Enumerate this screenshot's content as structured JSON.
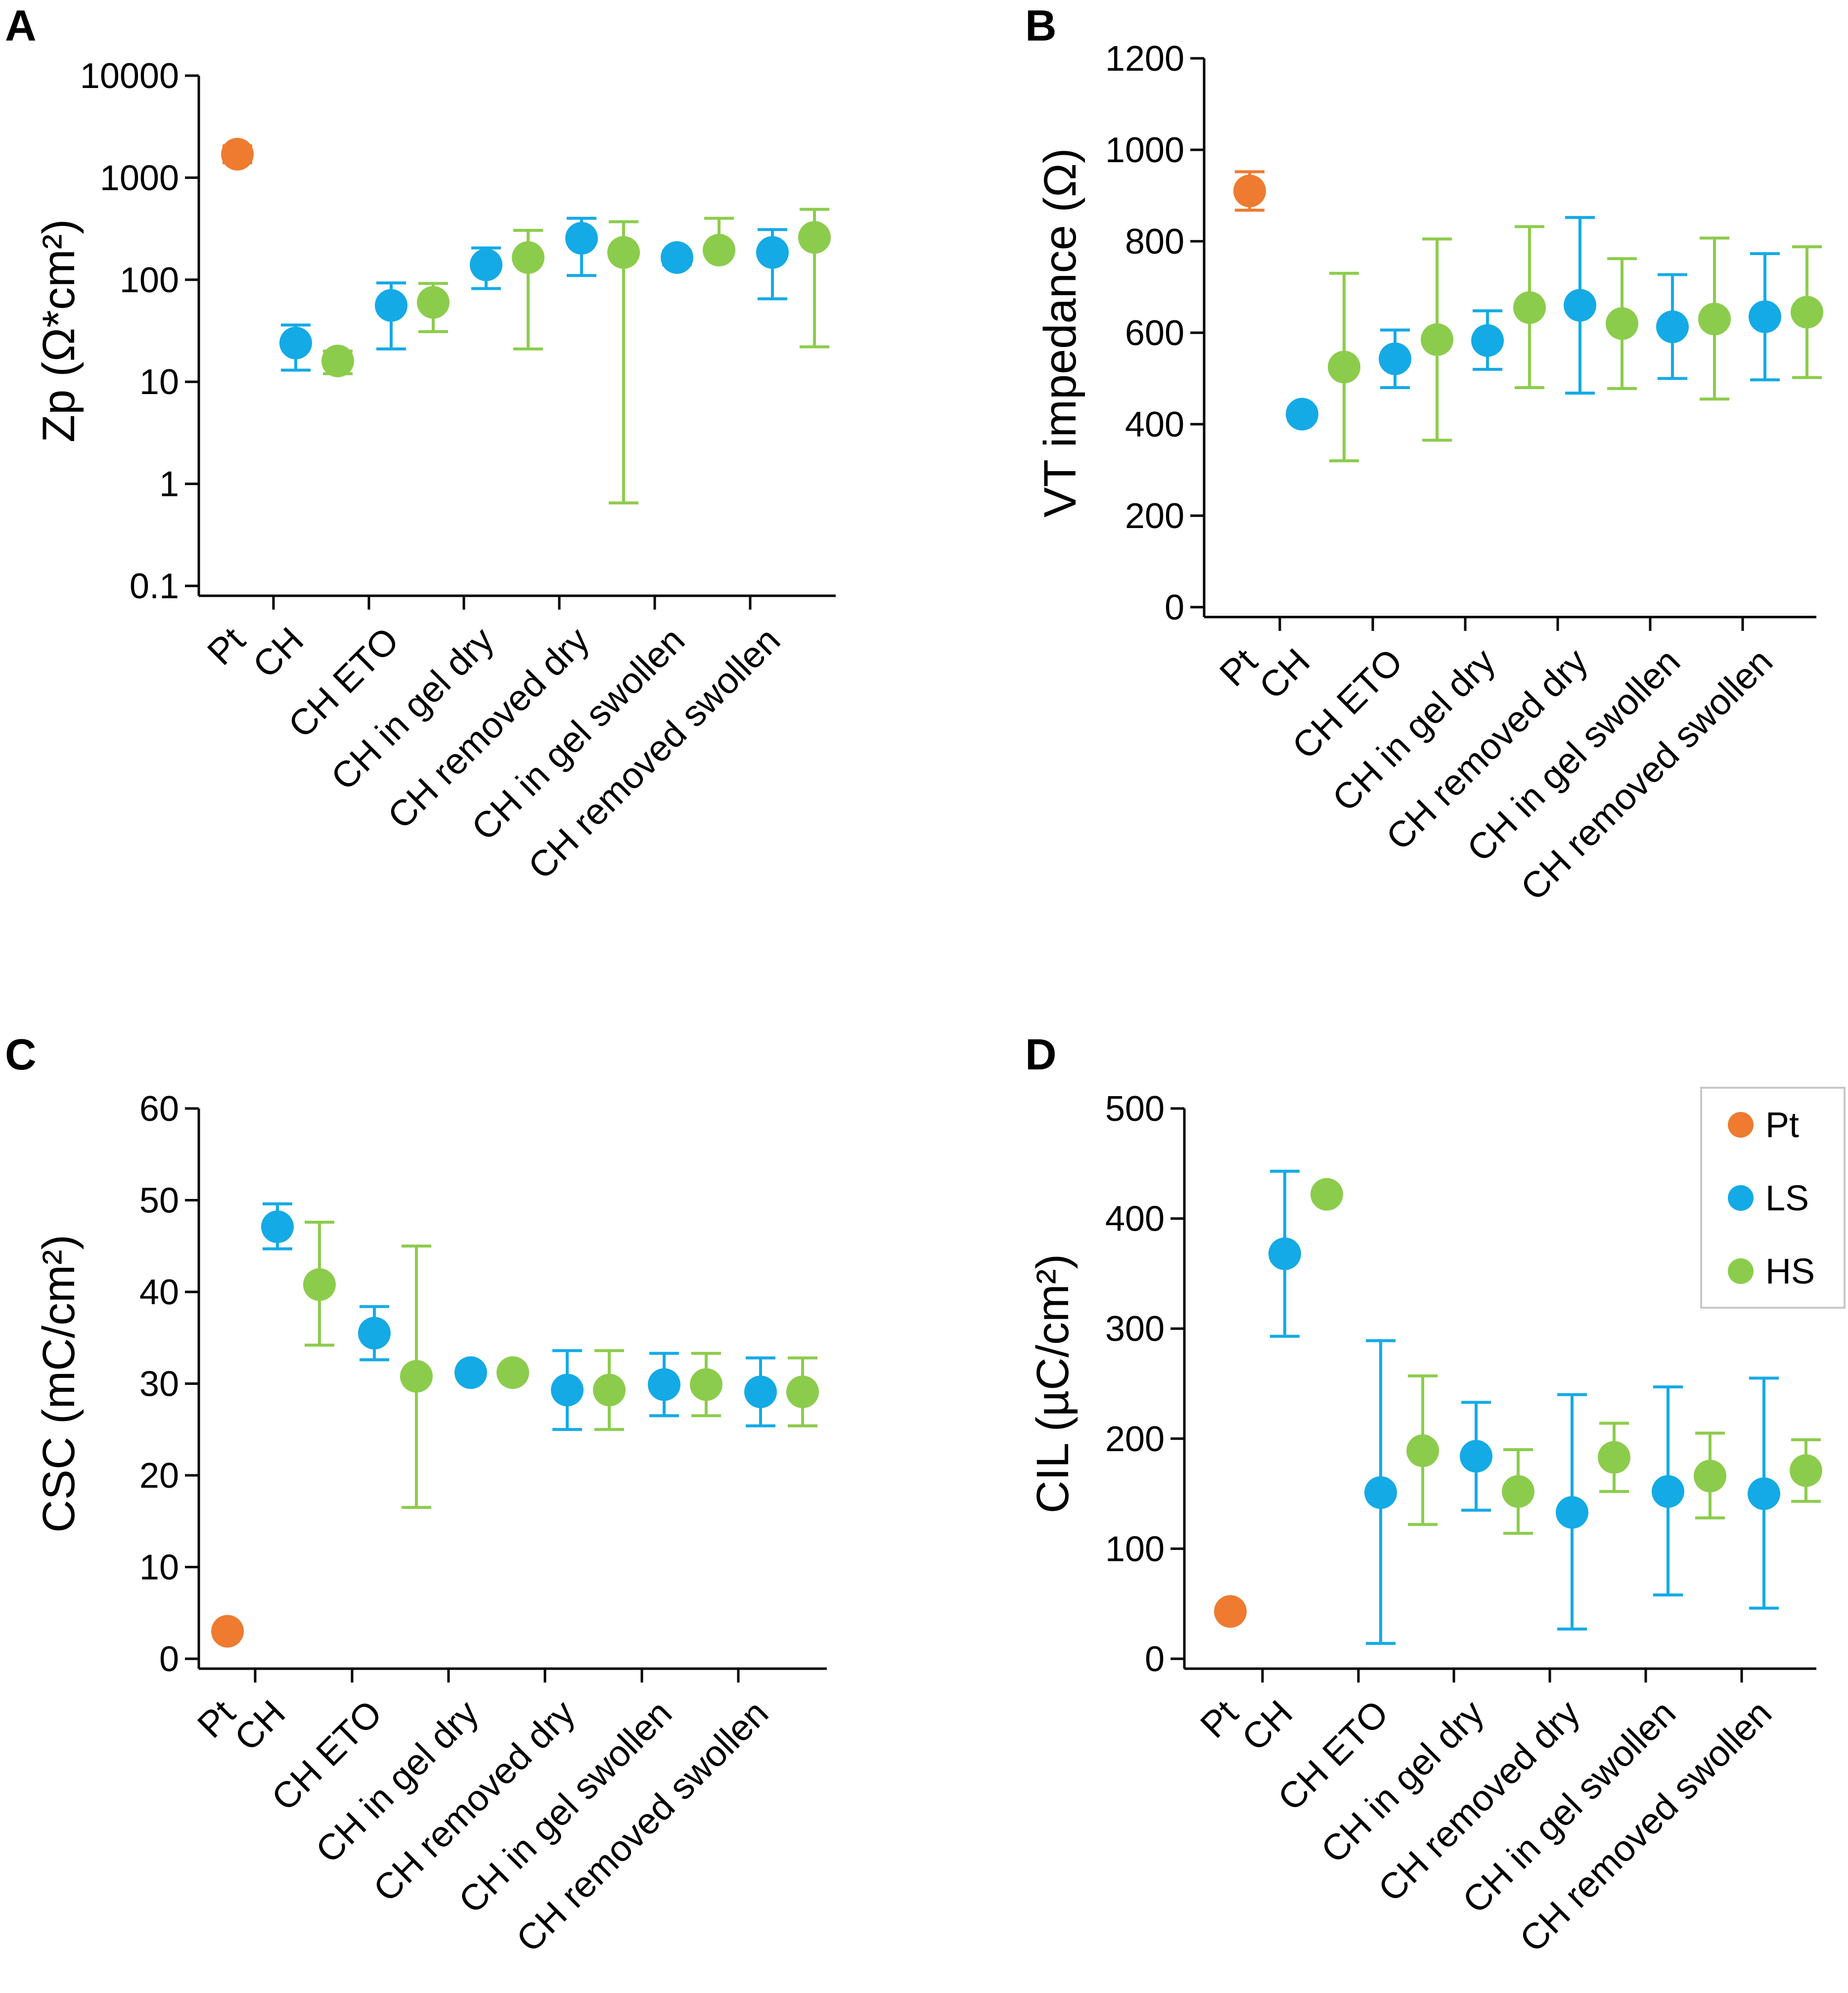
{
  "colors": {
    "Pt": "#ee7b30",
    "LS": "#14aae6",
    "HS": "#8ccc4c"
  },
  "legend": {
    "placement": "top-right of panel D",
    "entries": [
      {
        "series": "Pt",
        "label": "Pt"
      },
      {
        "series": "LS",
        "label": "LS"
      },
      {
        "series": "HS",
        "label": "HS"
      }
    ]
  },
  "chart_data": [
    {
      "panel": "A",
      "type": "scatter",
      "yscale": "log",
      "ylabel": "Zp (Ω*cm²)",
      "ylim": [
        0.1,
        10000
      ],
      "yticks": [
        "0.1",
        "1",
        "10",
        "100",
        "1000",
        "10000"
      ],
      "ytick_values": [
        0.1,
        1,
        10,
        100,
        1000,
        10000
      ],
      "categories": [
        "Pt",
        "CH",
        "CH ETO",
        "CH in gel dry",
        "CH removed dry",
        "CH in gel swollen",
        "CH removed swollen"
      ],
      "series": [
        {
          "name": "Pt",
          "points": [
            {
              "cat": 0,
              "y": 1700,
              "lo": 1400,
              "hi": 2050
            }
          ]
        },
        {
          "name": "LS",
          "points": [
            {
              "cat": 1,
              "y": 24,
              "lo": 13,
              "hi": 36
            },
            {
              "cat": 2,
              "y": 56,
              "lo": 21,
              "hi": 93
            },
            {
              "cat": 3,
              "y": 140,
              "lo": 82,
              "hi": 205
            },
            {
              "cat": 4,
              "y": 255,
              "lo": 110,
              "hi": 400
            },
            {
              "cat": 5,
              "y": 165,
              "lo": 140,
              "hi": 190
            },
            {
              "cat": 6,
              "y": 185,
              "lo": 65,
              "hi": 310
            }
          ]
        },
        {
          "name": "HS",
          "points": [
            {
              "cat": 1,
              "y": 16,
              "lo": 12,
              "hi": 20
            },
            {
              "cat": 2,
              "y": 60,
              "lo": 31,
              "hi": 92
            },
            {
              "cat": 3,
              "y": 165,
              "lo": 21,
              "hi": 305
            },
            {
              "cat": 4,
              "y": 185,
              "lo": 0.65,
              "hi": 370
            },
            {
              "cat": 5,
              "y": 195,
              "lo": 175,
              "hi": 400
            },
            {
              "cat": 6,
              "y": 260,
              "lo": 22,
              "hi": 490
            }
          ]
        }
      ]
    },
    {
      "panel": "B",
      "type": "scatter",
      "yscale": "linear",
      "ylabel": "VT impedance (Ω)",
      "ylim": [
        0,
        1200
      ],
      "yticks": [
        "0",
        "200",
        "400",
        "600",
        "800",
        "1000",
        "1200"
      ],
      "ytick_values": [
        0,
        200,
        400,
        600,
        800,
        1000,
        1200
      ],
      "categories": [
        "Pt",
        "CH",
        "CH ETO",
        "CH in gel dry",
        "CH removed dry",
        "CH in gel swollen",
        "CH removed swollen"
      ],
      "series": [
        {
          "name": "Pt",
          "points": [
            {
              "cat": 0,
              "y": 910,
              "lo": 868,
              "hi": 952
            }
          ]
        },
        {
          "name": "LS",
          "points": [
            {
              "cat": 1,
              "y": 422,
              "lo": 408,
              "hi": 436
            },
            {
              "cat": 2,
              "y": 543,
              "lo": 480,
              "hi": 606
            },
            {
              "cat": 3,
              "y": 583,
              "lo": 520,
              "hi": 648
            },
            {
              "cat": 4,
              "y": 660,
              "lo": 468,
              "hi": 852
            },
            {
              "cat": 5,
              "y": 613,
              "lo": 500,
              "hi": 727
            },
            {
              "cat": 6,
              "y": 635,
              "lo": 497,
              "hi": 773
            }
          ]
        },
        {
          "name": "HS",
          "points": [
            {
              "cat": 1,
              "y": 525,
              "lo": 320,
              "hi": 730
            },
            {
              "cat": 2,
              "y": 585,
              "lo": 365,
              "hi": 805
            },
            {
              "cat": 3,
              "y": 655,
              "lo": 480,
              "hi": 832
            },
            {
              "cat": 4,
              "y": 620,
              "lo": 478,
              "hi": 762
            },
            {
              "cat": 5,
              "y": 630,
              "lo": 455,
              "hi": 807
            },
            {
              "cat": 6,
              "y": 645,
              "lo": 502,
              "hi": 788
            }
          ]
        }
      ]
    },
    {
      "panel": "C",
      "type": "scatter",
      "yscale": "linear",
      "ylabel": "CSC (mC/cm²)",
      "ylim": [
        0,
        60
      ],
      "yticks": [
        "0",
        "10",
        "20",
        "30",
        "40",
        "50",
        "60"
      ],
      "ytick_values": [
        0,
        10,
        20,
        30,
        40,
        50,
        60
      ],
      "categories": [
        "Pt",
        "CH",
        "CH ETO",
        "CH in gel dry",
        "CH removed dry",
        "CH in gel swollen",
        "CH removed swollen"
      ],
      "series": [
        {
          "name": "Pt",
          "points": [
            {
              "cat": 0,
              "y": 3,
              "lo": 2.6,
              "hi": 3.4
            }
          ]
        },
        {
          "name": "LS",
          "points": [
            {
              "cat": 1,
              "y": 47.1,
              "lo": 44.7,
              "hi": 49.6
            },
            {
              "cat": 2,
              "y": 35.5,
              "lo": 32.6,
              "hi": 38.4
            },
            {
              "cat": 3,
              "y": 31.2,
              "lo": 30.8,
              "hi": 31.6
            },
            {
              "cat": 4,
              "y": 29.3,
              "lo": 25,
              "hi": 33.6
            },
            {
              "cat": 5,
              "y": 29.9,
              "lo": 26.5,
              "hi": 33.3
            },
            {
              "cat": 6,
              "y": 29.1,
              "lo": 25.4,
              "hi": 32.8
            }
          ]
        },
        {
          "name": "HS",
          "points": [
            {
              "cat": 1,
              "y": 40.8,
              "lo": 34.2,
              "hi": 47.6
            },
            {
              "cat": 2,
              "y": 30.8,
              "lo": 16.5,
              "hi": 45
            },
            {
              "cat": 3,
              "y": 31.2,
              "lo": 30.9,
              "hi": 31.5
            },
            {
              "cat": 4,
              "y": 29.3,
              "lo": 25,
              "hi": 33.6
            },
            {
              "cat": 5,
              "y": 29.9,
              "lo": 26.5,
              "hi": 33.3
            },
            {
              "cat": 6,
              "y": 29.1,
              "lo": 25.4,
              "hi": 32.8
            }
          ]
        }
      ]
    },
    {
      "panel": "D",
      "type": "scatter",
      "yscale": "linear",
      "ylabel": "CIL (µC/cm²)",
      "ylim": [
        0,
        500
      ],
      "yticks": [
        "0",
        "100",
        "200",
        "300",
        "400",
        "500"
      ],
      "ytick_values": [
        0,
        100,
        200,
        300,
        400,
        500
      ],
      "categories": [
        "Pt",
        "CH",
        "CH ETO",
        "CH in gel dry",
        "CH removed dry",
        "CH in gel swollen",
        "CH removed swollen"
      ],
      "series": [
        {
          "name": "Pt",
          "points": [
            {
              "cat": 0,
              "y": 43,
              "lo": 38,
              "hi": 48
            }
          ]
        },
        {
          "name": "LS",
          "points": [
            {
              "cat": 1,
              "y": 368,
              "lo": 293,
              "hi": 443
            },
            {
              "cat": 2,
              "y": 151,
              "lo": 14,
              "hi": 289
            },
            {
              "cat": 3,
              "y": 184,
              "lo": 135,
              "hi": 233
            },
            {
              "cat": 4,
              "y": 133,
              "lo": 27,
              "hi": 240
            },
            {
              "cat": 5,
              "y": 152,
              "lo": 58,
              "hi": 247
            },
            {
              "cat": 6,
              "y": 150,
              "lo": 46,
              "hi": 255
            }
          ]
        },
        {
          "name": "HS",
          "points": [
            {
              "cat": 1,
              "y": 422,
              "lo": 419,
              "hi": 425
            },
            {
              "cat": 2,
              "y": 189,
              "lo": 122,
              "hi": 257
            },
            {
              "cat": 3,
              "y": 152,
              "lo": 114,
              "hi": 190
            },
            {
              "cat": 4,
              "y": 183,
              "lo": 152,
              "hi": 214
            },
            {
              "cat": 5,
              "y": 166,
              "lo": 128,
              "hi": 205
            },
            {
              "cat": 6,
              "y": 171,
              "lo": 143,
              "hi": 199
            }
          ]
        }
      ]
    }
  ]
}
